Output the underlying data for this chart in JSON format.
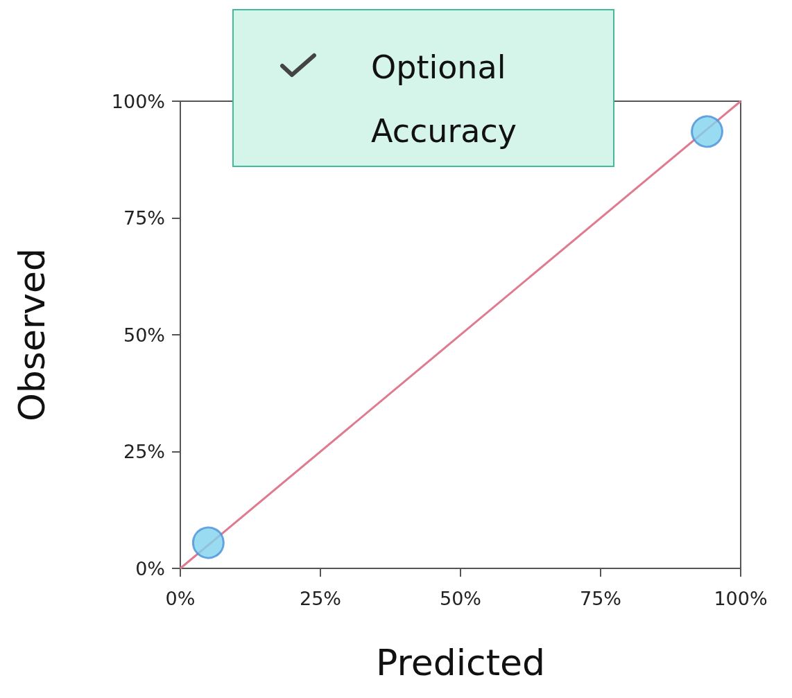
{
  "chart_data": {
    "type": "scatter",
    "xlabel": "Predicted",
    "ylabel": "Observed",
    "x": [
      5,
      94
    ],
    "series": [
      {
        "color": "#7fd3ee",
        "values": [
          5.5,
          93.5
        ]
      },
      {
        "type": "line",
        "color": "#e07a90",
        "x": [
          0,
          100
        ],
        "values": [
          0,
          100
        ],
        "marker": "none"
      }
    ],
    "xlim": [
      0,
      100
    ],
    "ylim": [
      0,
      100
    ],
    "xticks": [
      {
        "value": 0,
        "label": "0%"
      },
      {
        "value": 25,
        "label": "25%"
      },
      {
        "value": 50,
        "label": "50%"
      },
      {
        "value": 75,
        "label": "75%"
      },
      {
        "value": 100,
        "label": "100%"
      }
    ],
    "yticks": [
      {
        "value": 0,
        "label": "0%"
      },
      {
        "value": 25,
        "label": "25%"
      },
      {
        "value": 50,
        "label": "50%"
      },
      {
        "value": 75,
        "label": "75%"
      },
      {
        "value": 100,
        "label": "100%"
      }
    ],
    "annotations": [
      "Optional Accuracy"
    ],
    "marker": "circle",
    "grid": false
  }
}
